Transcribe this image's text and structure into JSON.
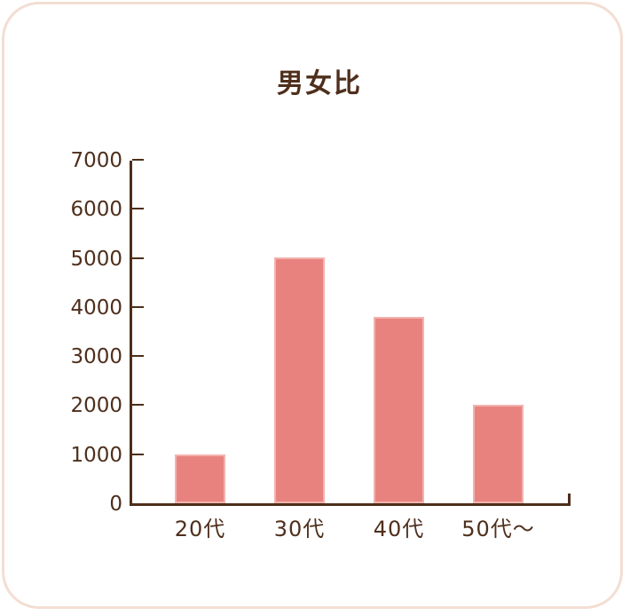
{
  "card": {
    "background_color": "#ffffff",
    "border_color": "#f3ded3"
  },
  "chart_data": {
    "type": "bar",
    "title": "男女比",
    "categories": [
      "20代",
      "30代",
      "40代",
      "50代〜"
    ],
    "values": [
      1000,
      5000,
      3800,
      2000
    ],
    "xlabel": "",
    "ylabel": "",
    "ylim": [
      0,
      7000
    ],
    "ytick_step": 1000,
    "ytick_labels": [
      "0",
      "1000",
      "2000",
      "3000",
      "4000",
      "5000",
      "6000",
      "7000"
    ],
    "grid": false,
    "legend": null,
    "colors": {
      "bar_fill": "#e8827e",
      "bar_edge": "#f2b3af",
      "axis": "#4d2e1a",
      "text": "#4f2f1c"
    }
  }
}
